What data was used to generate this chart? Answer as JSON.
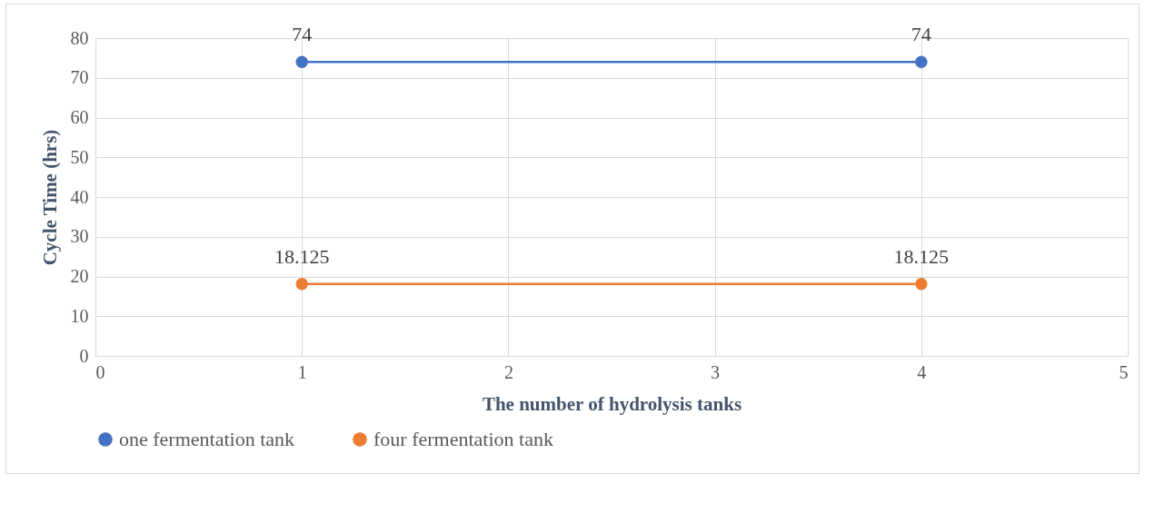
{
  "chart_data": {
    "type": "line",
    "xlabel": "The number  of hydrolysis  tanks",
    "ylabel": "Cycle Time (hrs)",
    "x": [
      1,
      4
    ],
    "series": [
      {
        "name": "one fermentation tank",
        "color": "#4472c4",
        "values": [
          74,
          74
        ]
      },
      {
        "name": "four fermentation tank",
        "color": "#ed7d31",
        "values": [
          18.125,
          18.125
        ]
      }
    ],
    "xlim": [
      0,
      5
    ],
    "xticks": [
      0,
      1,
      2,
      3,
      4,
      5
    ],
    "ylim": [
      0,
      80
    ],
    "yticks": [
      0,
      10,
      20,
      30,
      40,
      50,
      60,
      70,
      80
    ],
    "grid": true,
    "legend": "bottom",
    "marker": "circle",
    "line_style": "solid",
    "data_labels": true
  }
}
